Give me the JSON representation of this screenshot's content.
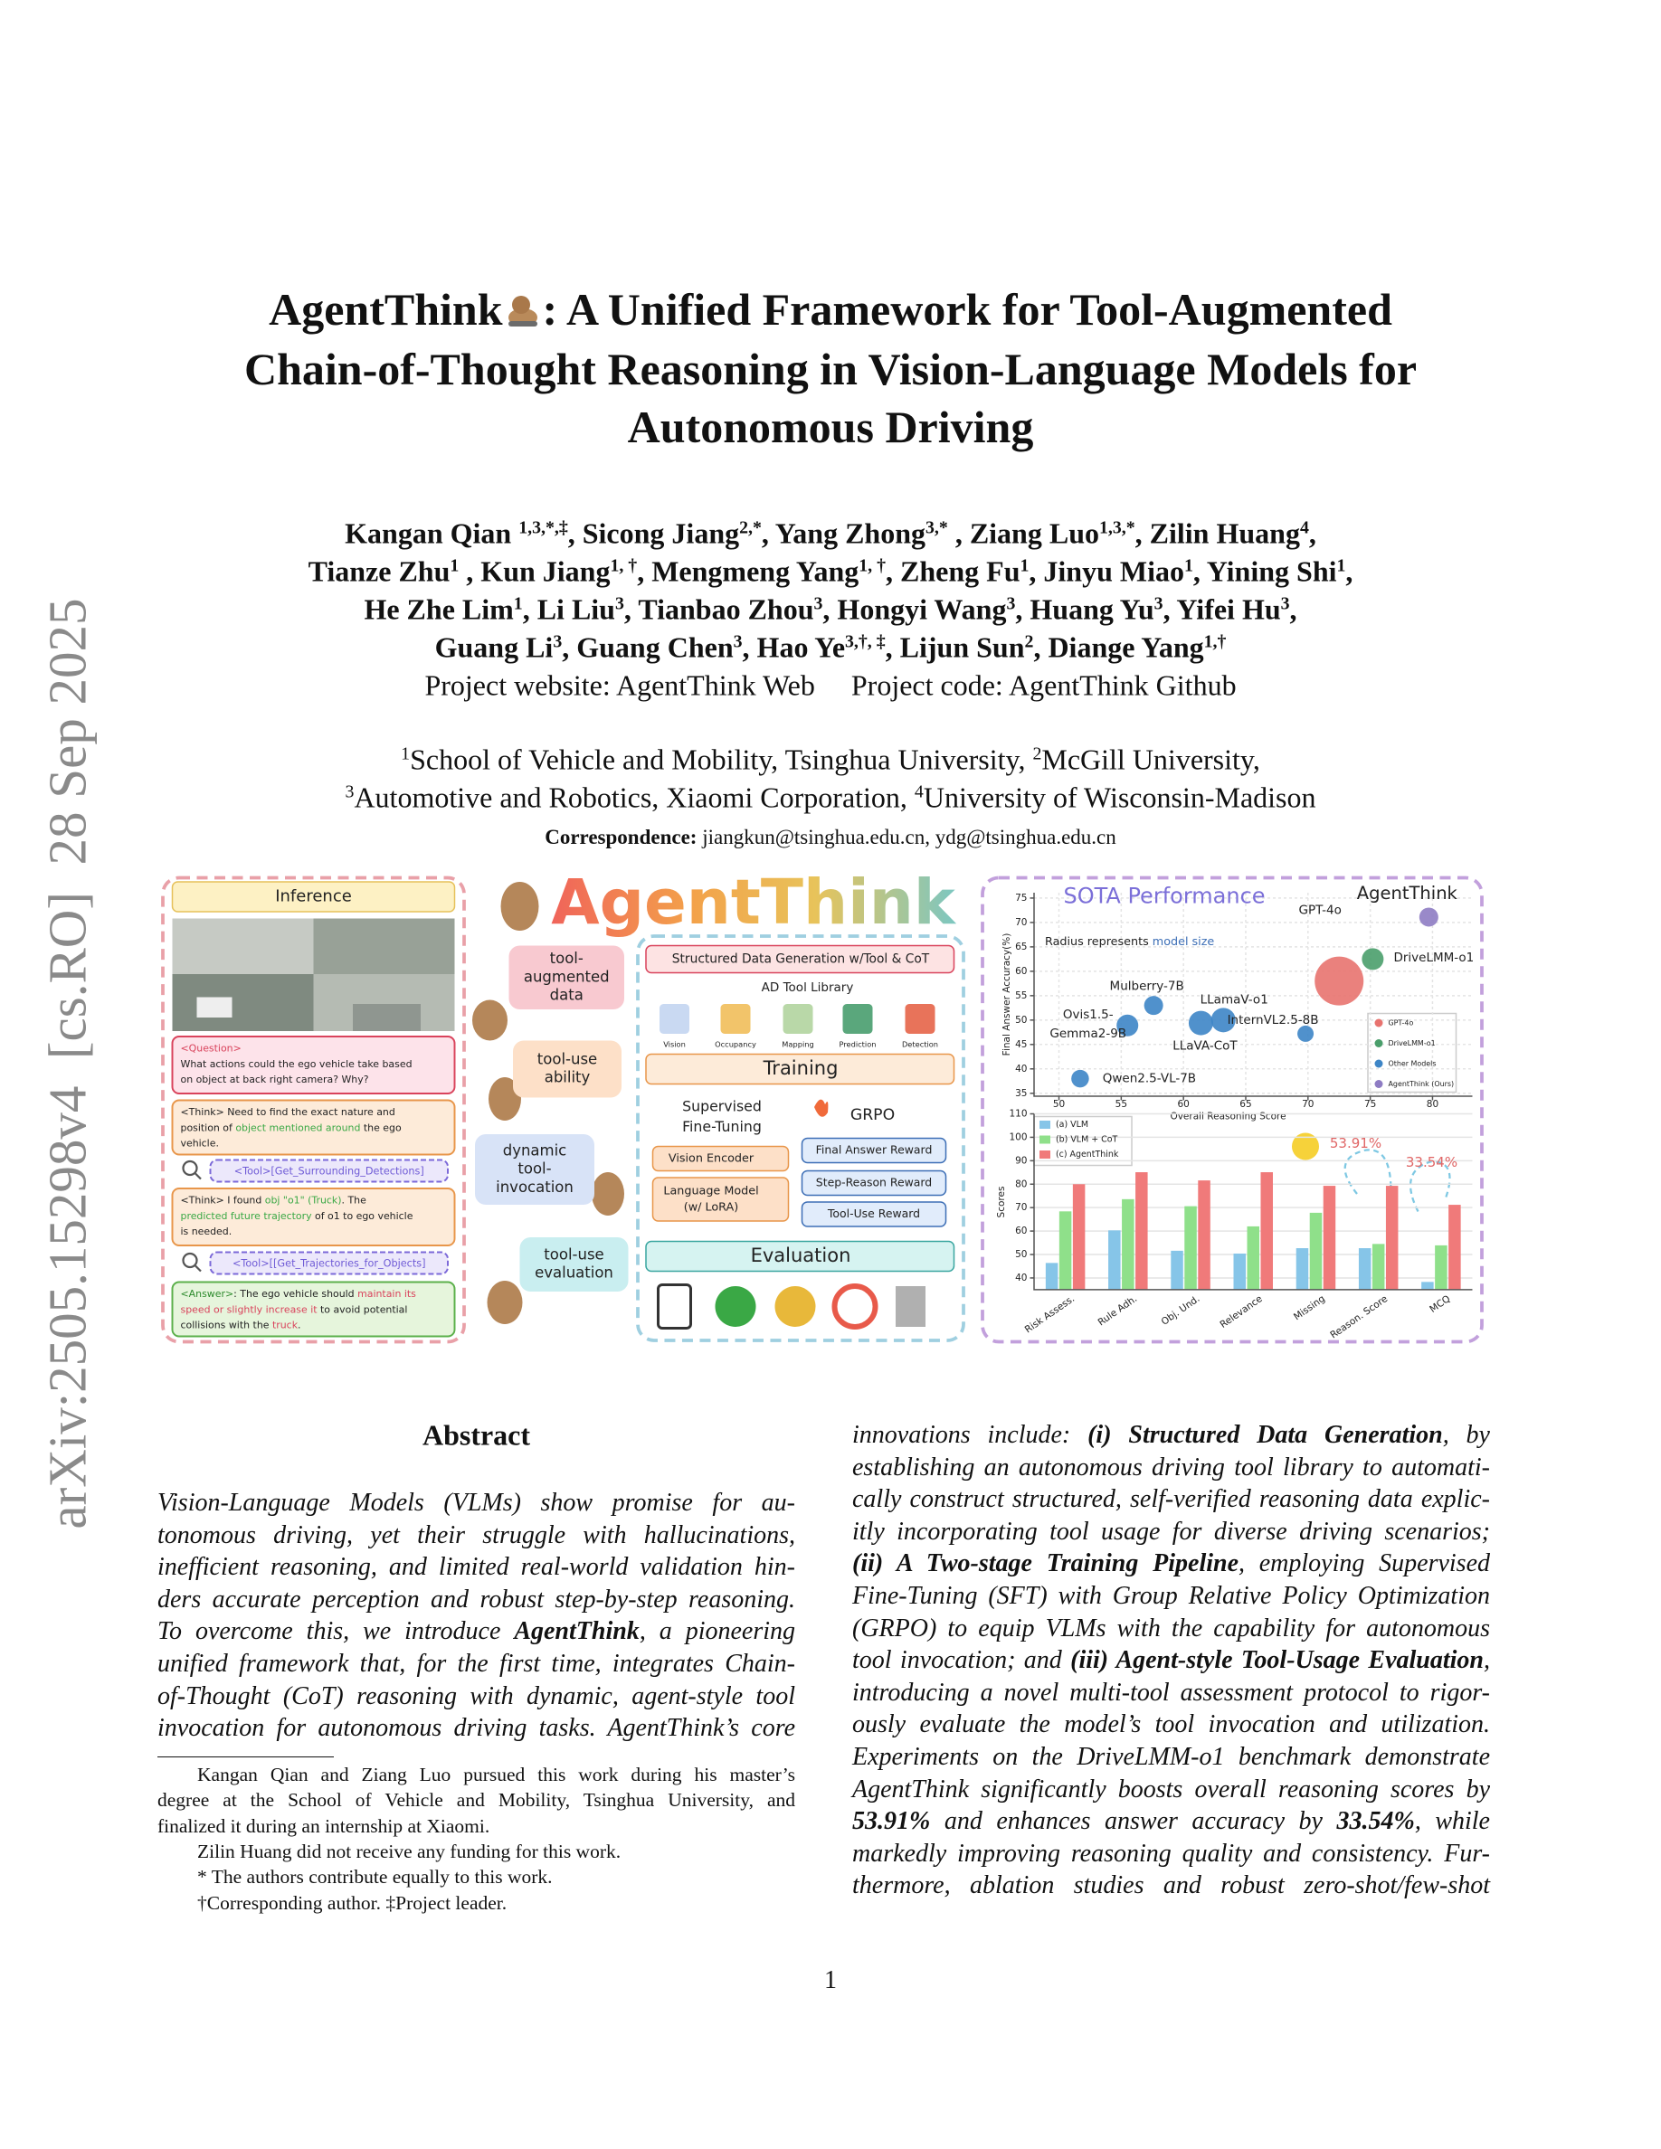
{
  "side_stamp": "arXiv:2505.15298v4  [cs.RO]  28 Sep 2025",
  "title_lines": [
    [
      "AgentThink",
      ": A Unified Framework for Tool-Augmented"
    ],
    "Chain-of-Thought Reasoning in Vision-Language Models for",
    "Autonomous Driving"
  ],
  "authors": [
    [
      "Kangan Qian ",
      {
        "text": "1,3,*,‡",
        "sup": true
      },
      ", Sicong Jiang",
      {
        "text": "2,*",
        "sup": true
      },
      ", Yang Zhong",
      {
        "text": "3,*",
        "sup": true
      },
      " , Ziang Luo",
      {
        "text": "1,3,*",
        "sup": true
      },
      ", Zilin Huang",
      {
        "text": "4",
        "sup": true
      },
      ","
    ],
    [
      "Tianze Zhu",
      {
        "text": "1",
        "sup": true
      },
      " , Kun Jiang",
      {
        "text": "1, †",
        "sup": true
      },
      ", Mengmeng Yang",
      {
        "text": "1, †",
        "sup": true
      },
      ", Zheng Fu",
      {
        "text": "1",
        "sup": true
      },
      ", Jinyu Miao",
      {
        "text": "1",
        "sup": true
      },
      ", Yining Shi",
      {
        "text": "1",
        "sup": true
      },
      ","
    ],
    [
      "He Zhe Lim",
      {
        "text": "1",
        "sup": true
      },
      ", Li Liu",
      {
        "text": "3",
        "sup": true
      },
      ", Tianbao Zhou",
      {
        "text": "3",
        "sup": true
      },
      ", Hongyi Wang",
      {
        "text": "3",
        "sup": true
      },
      ", Huang Yu",
      {
        "text": "3",
        "sup": true
      },
      ", Yifei Hu",
      {
        "text": "3",
        "sup": true
      },
      ","
    ],
    [
      "Guang Li",
      {
        "text": "3",
        "sup": true
      },
      ", Guang Chen",
      {
        "text": "3",
        "sup": true
      },
      ", Hao Ye",
      {
        "text": "3,†, ‡",
        "sup": true
      },
      ", Lijun Sun",
      {
        "text": "2",
        "sup": true
      },
      ", Diange Yang",
      {
        "text": "1,†",
        "sup": true
      }
    ]
  ],
  "project": [
    "Project website: AgentThink Web",
    "Project code: AgentThink Github"
  ],
  "affiliations": [
    [
      {
        "text": "1",
        "sup": true
      },
      "School of Vehicle and Mobility, Tsinghua University, ",
      {
        "text": "2",
        "sup": true
      },
      "McGill University,"
    ],
    [
      {
        "text": "3",
        "sup": true
      },
      "Automotive and Robotics, Xiaomi Corporation, ",
      {
        "text": "4",
        "sup": true
      },
      "University of Wisconsin-Madison"
    ]
  ],
  "correspondence": [
    {
      "text": "Correspondence:",
      "bold": true
    },
    " jiangkun@tsinghua.edu.cn, ydg@tsinghua.edu.cn"
  ],
  "figure": {
    "inference": {
      "header": "Inference",
      "boxes": [
        [
          [
            {
              "text": "<Question>",
              "color": "#d9435c"
            }
          ],
          [
            "What actions could the ego vehicle take based"
          ],
          [
            "on object at back right camera? Why?"
          ]
        ],
        [
          [
            "<Think> Need to find the exact nature and"
          ],
          [
            "position of ",
            {
              "text": "object mentioned around",
              "color": "#3aa845"
            },
            " the ego"
          ],
          [
            "vehicle."
          ]
        ],
        [
          [
            {
              "text": "<Tool>[Get_Surrounding_Detections]",
              "color": "#6f5bd6"
            }
          ]
        ],
        [
          [
            "<Think> I found ",
            {
              "text": "obj \"o1\" (Truck)",
              "color": "#3aa845"
            },
            ". The"
          ],
          [
            {
              "text": "predicted future trajectory",
              "color": "#3aa845"
            },
            " of o1 to ego vehicle"
          ],
          [
            "is needed."
          ]
        ],
        [
          [
            {
              "text": "<Tool>[[Get_Trajectories_for_Objects]",
              "color": "#6f5bd6"
            }
          ]
        ],
        [
          [
            {
              "text": "<Answer>",
              "color": "#2e8b2e"
            },
            ": The ego vehicle should ",
            {
              "text": "maintain its",
              "color": "#d9435c"
            }
          ],
          [
            {
              "text": "speed or slightly increase it",
              "color": "#d9435c"
            },
            " to avoid potential"
          ],
          [
            "collisions with the ",
            {
              "text": "truck",
              "color": "#d9435c"
            },
            "."
          ]
        ]
      ]
    },
    "logo": "AgentThink",
    "bubbles": [
      [
        "tool-",
        "augmented",
        "data"
      ],
      [
        "tool-use",
        "ability"
      ],
      [
        "dynamic",
        "tool-",
        "invocation"
      ],
      [
        "tool-use",
        "evaluation"
      ]
    ],
    "data_generation": "Structured Data Generation w/Tool & CoT",
    "tool_library": "AD Tool Library",
    "tools": [
      "Vision",
      "Occupancy",
      "Mapping",
      "Prediction",
      "Detection"
    ],
    "training": "Training",
    "sft": [
      "Supervised",
      "Fine-Tuning"
    ],
    "grpo": "GRPO",
    "modules": [
      [
        "Vision Encoder"
      ],
      [
        "Language Model",
        "(w/ LoRA)"
      ]
    ],
    "rewards": [
      "Final Answer Reward",
      "Step-Reason Reward",
      "Tool-Use Reward"
    ],
    "evaluation": "Evaluation"
  },
  "chart_data": [
    {
      "type": "scatter",
      "title": "SOTA Performance",
      "note": [
        "Radius represents ",
        {
          "text": "model size",
          "color": "#3d6fb6"
        }
      ],
      "x_label": "Overall Reasoning Score",
      "y_label": "Final Answer Accuracy(%)",
      "xlim": [
        48,
        83.2
      ],
      "xticks": [
        50,
        55,
        60,
        65,
        70,
        75,
        80
      ],
      "ylim": [
        34.4,
        76.1
      ],
      "yticks": [
        35,
        40,
        45,
        50,
        55,
        60,
        65,
        70,
        75
      ],
      "grid": true,
      "series": [
        {
          "name": "GPT-4o",
          "color": "#e8736f",
          "labels": [
            "GPT-4o"
          ],
          "x": [
            72.5
          ],
          "values": [
            58
          ],
          "sizes": [
            18
          ]
        },
        {
          "name": "DriveLMM-o1",
          "color": "#4a9e6b",
          "labels": [
            "DriveLMM-o1"
          ],
          "x": [
            75.2
          ],
          "values": [
            62.5
          ],
          "sizes": [
            8
          ]
        },
        {
          "name": "Other Models",
          "color": "#3d85c6",
          "labels": [
            "Mulberry-7B",
            [
              "Ovis1.5-",
              "Gemma2-9B"
            ],
            "LLaVA-CoT",
            "LLamaV-o1",
            "InternVL2.5-8B",
            "Qwen2.5-VL-7B"
          ],
          "x": [
            57.6,
            55.5,
            61.4,
            63.2,
            69.8,
            51.7
          ],
          "values": [
            53,
            48.9,
            49.4,
            50,
            47.2,
            38
          ],
          "sizes": [
            7,
            8,
            9,
            9,
            6,
            6.5
          ]
        },
        {
          "name": "AgentThink (Ours)",
          "color": "#8e7cc3",
          "labels": [
            "AgentThink"
          ],
          "x": [
            79.7
          ],
          "values": [
            71.1
          ],
          "sizes": [
            7
          ]
        }
      ]
    },
    {
      "type": "bar",
      "y_label": "Scores",
      "categories": [
        "Risk Assess.",
        "Rule Adh.",
        "Obj. Und.",
        "Relevance",
        "Missing",
        "Reason. Score",
        "MCQ"
      ],
      "ylim": [
        35,
        110
      ],
      "yticks": [
        40,
        50,
        60,
        70,
        80,
        90,
        100,
        110
      ],
      "grid": true,
      "series": [
        {
          "name": "(a) VLM",
          "color": "#86c5e8",
          "values": [
            46.4,
            60.3,
            51.6,
            50.4,
            52.7,
            52.7,
            38.3
          ]
        },
        {
          "name": "(b) VLM + CoT",
          "color": "#8fe08a",
          "values": [
            68.4,
            73.6,
            70.6,
            62,
            67.8,
            54.5,
            53.9
          ]
        },
        {
          "name": "(c) AgentThink",
          "color": "#f07a7a",
          "values": [
            80,
            85.1,
            81.6,
            85.1,
            79.3,
            79.3,
            71.2
          ]
        }
      ],
      "annotations": [
        "53.91%",
        "33.54%"
      ]
    }
  ],
  "abstract": {
    "heading": "Abstract",
    "left": [
      [
        "Vision-Language Models (VLMs) show promise for au-"
      ],
      [
        "tonomous driving, yet their struggle with hallucinations,"
      ],
      [
        "inefficient reasoning, and limited real-world validation hin-"
      ],
      [
        "ders accurate perception and robust step-by-step reasoning."
      ],
      [
        "To overcome this, we introduce ",
        {
          "text": "AgentThink",
          "bold": true
        },
        ", a pioneering"
      ],
      [
        "unified framework that, for the first time, integrates Chain-"
      ],
      [
        "of-Thought (CoT) reasoning with dynamic, agent-style tool"
      ],
      [
        "invocation for autonomous driving tasks. AgentThink’s core"
      ]
    ],
    "right": [
      [
        "innovations include: ",
        {
          "text": "(i) Structured Data Generation",
          "bold": true
        },
        ", by"
      ],
      [
        "establishing an autonomous driving tool library to automati-"
      ],
      [
        "cally construct structured, self-verified reasoning data explic-"
      ],
      [
        "itly incorporating tool usage for diverse driving scenarios;"
      ],
      [
        {
          "text": "(ii) A Two-stage Training Pipeline",
          "bold": true
        },
        ", employing Supervised"
      ],
      [
        "Fine-Tuning (SFT) with Group Relative Policy Optimization"
      ],
      [
        "(GRPO) to equip VLMs with the capability for autonomous"
      ],
      [
        "tool invocation; and ",
        {
          "text": "(iii) Agent-style Tool-Usage Evaluation",
          "bold": true
        },
        ","
      ],
      [
        "introducing a novel multi-tool assessment protocol to rigor-"
      ],
      [
        "ously evaluate the model’s tool invocation and utilization."
      ],
      [
        "Experiments on the DriveLMM-o1 benchmark demonstrate"
      ],
      [
        "AgentThink significantly boosts overall reasoning scores by"
      ],
      [
        {
          "text": "53.91%",
          "bold": true
        },
        " and enhances answer accuracy by ",
        {
          "text": "33.54%",
          "bold": true
        },
        ", while"
      ],
      [
        "markedly improving reasoning quality and consistency. Fur-"
      ],
      [
        "thermore, ablation studies and robust zero-shot/few-shot"
      ]
    ]
  },
  "footnotes": [
    "Kangan Qian and Ziang Luo pursued this work during his master’s",
    "degree at the School of Vehicle and Mobility, Tsinghua University, and",
    "finalized it during an internship at Xiaomi.",
    "Zilin Huang did not receive any funding for this work.",
    "* The authors contribute equally to this work.",
    "†Corresponding author. ‡Project leader."
  ],
  "page_number": "1"
}
